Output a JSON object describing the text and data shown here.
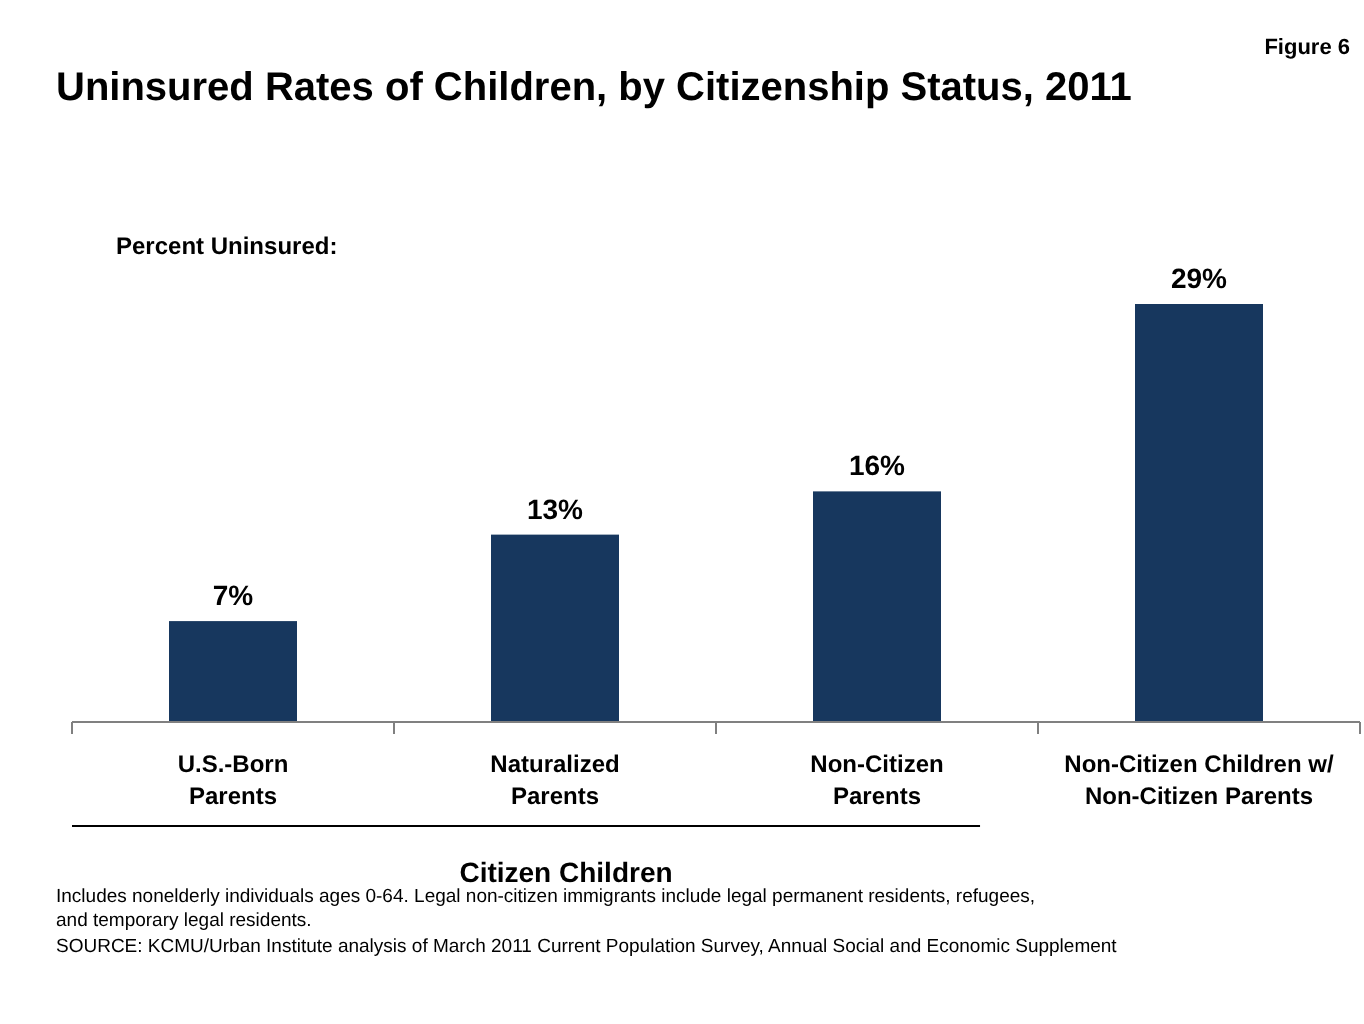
{
  "chart_data": {
    "type": "bar",
    "title": "Uninsured Rates of Children, by Citizenship Status, 2011",
    "ylabel": "Percent Uninsured:",
    "categories": [
      "U.S.-Born\nParents",
      "Naturalized\nParents",
      "Non-Citizen\nParents",
      "Non-Citizen Children w/\nNon-Citizen Parents"
    ],
    "values": [
      7,
      13,
      16,
      29
    ],
    "color": "#17375e",
    "value_labels": [
      "7%",
      "13%",
      "16%",
      "29%"
    ],
    "annotations": [
      "Figure 6",
      "Citizen Children",
      "Includes nonelderly individuals ages 0-64. Legal non-citizen immigrants include legal permanent residents, refugees, and temporary legal residents.",
      "SOURCE: KCMU/Urban Institute analysis of March 2011 Current Population Survey, Annual Social and Economic Supplement"
    ]
  }
}
